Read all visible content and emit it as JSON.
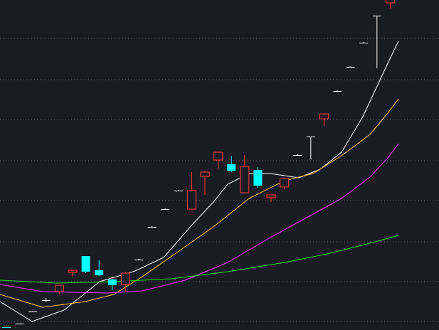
{
  "chart_data": {
    "type": "candlestick",
    "background": "#1a1c24",
    "grid": true,
    "grid_color": "#5a5e6e",
    "ylim": [
      0,
      464
    ],
    "colors": {
      "up": "#ff3a3a",
      "down": "#00ffff",
      "limit": "#ffffff"
    },
    "candles": [
      {
        "o": 4,
        "h": 4,
        "l": 4,
        "c": 4,
        "kind": "down"
      },
      {
        "o": 9,
        "h": 9,
        "l": 9,
        "c": 9,
        "kind": "limit"
      },
      {
        "o": 26,
        "h": 26,
        "l": 26,
        "c": 26,
        "kind": "limit"
      },
      {
        "o": 42,
        "h": 45,
        "l": 39,
        "c": 42,
        "kind": "limit"
      },
      {
        "o": 54,
        "h": 63,
        "l": 51,
        "c": 63,
        "kind": "up"
      },
      {
        "o": 81,
        "h": 84,
        "l": 75,
        "c": 84,
        "kind": "up"
      },
      {
        "o": 104,
        "h": 104,
        "l": 80,
        "c": 82,
        "kind": "down"
      },
      {
        "o": 84,
        "h": 98,
        "l": 76,
        "c": 77,
        "kind": "down"
      },
      {
        "o": 71,
        "h": 72,
        "l": 56,
        "c": 63,
        "kind": "down"
      },
      {
        "o": 64,
        "h": 82,
        "l": 54,
        "c": 80,
        "kind": "up"
      },
      {
        "o": 99,
        "h": 100,
        "l": 98,
        "c": 99,
        "kind": "limit"
      },
      {
        "o": 145,
        "h": 146,
        "l": 144,
        "c": 145,
        "kind": "limit"
      },
      {
        "o": 170,
        "h": 171,
        "l": 169,
        "c": 170,
        "kind": "limit"
      },
      {
        "o": 196,
        "h": 197,
        "l": 195,
        "c": 196,
        "kind": "limit"
      },
      {
        "o": 170,
        "h": 222,
        "l": 168,
        "c": 196,
        "kind": "up"
      },
      {
        "o": 216,
        "h": 224,
        "l": 190,
        "c": 222,
        "kind": "up"
      },
      {
        "o": 239,
        "h": 250,
        "l": 227,
        "c": 250,
        "kind": "up"
      },
      {
        "o": 233,
        "h": 245,
        "l": 222,
        "c": 224,
        "kind": "down"
      },
      {
        "o": 193,
        "h": 246,
        "l": 192,
        "c": 230,
        "kind": "up"
      },
      {
        "o": 225,
        "h": 229,
        "l": 200,
        "c": 203,
        "kind": "down"
      },
      {
        "o": 186,
        "h": 190,
        "l": 180,
        "c": 190,
        "kind": "up"
      },
      {
        "o": 201,
        "h": 214,
        "l": 198,
        "c": 213,
        "kind": "up"
      },
      {
        "o": 246,
        "h": 247,
        "l": 245,
        "c": 246,
        "kind": "limit"
      },
      {
        "o": 272,
        "h": 272,
        "l": 240,
        "c": 272,
        "kind": "limit"
      },
      {
        "o": 297,
        "h": 305,
        "l": 287,
        "c": 304,
        "kind": "up"
      },
      {
        "o": 336,
        "h": 337,
        "l": 335,
        "c": 336,
        "kind": "limit"
      },
      {
        "o": 370,
        "h": 371,
        "l": 369,
        "c": 370,
        "kind": "limit"
      },
      {
        "o": 404,
        "h": 405,
        "l": 403,
        "c": 404,
        "kind": "limit"
      },
      {
        "o": 442,
        "h": 442,
        "l": 368,
        "c": 442,
        "kind": "limit"
      },
      {
        "o": 460,
        "h": 480,
        "l": 452,
        "c": 470,
        "kind": "up"
      }
    ],
    "series": [
      {
        "color": "#ffffff",
        "values": [
          [
            0,
            40
          ],
          [
            45,
            12
          ],
          [
            90,
            28
          ],
          [
            140,
            68
          ],
          [
            190,
            83
          ],
          [
            230,
            102
          ],
          [
            270,
            148
          ],
          [
            300,
            180
          ],
          [
            320,
            205
          ],
          [
            350,
            220
          ],
          [
            380,
            220
          ],
          [
            420,
            214
          ],
          [
            450,
            226
          ],
          [
            480,
            250
          ],
          [
            510,
            300
          ],
          [
            545,
            375
          ],
          [
            560,
            406
          ]
        ]
      },
      {
        "color": "#ffc83a",
        "values": [
          [
            0,
            50
          ],
          [
            60,
            32
          ],
          [
            120,
            40
          ],
          [
            160,
            50
          ],
          [
            200,
            75
          ],
          [
            250,
            110
          ],
          [
            300,
            145
          ],
          [
            350,
            185
          ],
          [
            400,
            210
          ],
          [
            440,
            220
          ],
          [
            480,
            245
          ],
          [
            520,
            275
          ],
          [
            545,
            305
          ],
          [
            560,
            325
          ]
        ]
      },
      {
        "color": "#ff30ff",
        "values": [
          [
            0,
            64
          ],
          [
            60,
            54
          ],
          [
            150,
            52
          ],
          [
            200,
            55
          ],
          [
            260,
            70
          ],
          [
            320,
            95
          ],
          [
            380,
            130
          ],
          [
            440,
            163
          ],
          [
            480,
            185
          ],
          [
            520,
            215
          ],
          [
            545,
            242
          ],
          [
            560,
            262
          ]
        ]
      },
      {
        "color": "#22dd22",
        "values": [
          [
            0,
            70
          ],
          [
            80,
            66
          ],
          [
            160,
            68
          ],
          [
            240,
            72
          ],
          [
            320,
            82
          ],
          [
            400,
            95
          ],
          [
            460,
            107
          ],
          [
            520,
            122
          ],
          [
            560,
            133
          ]
        ]
      }
    ]
  }
}
